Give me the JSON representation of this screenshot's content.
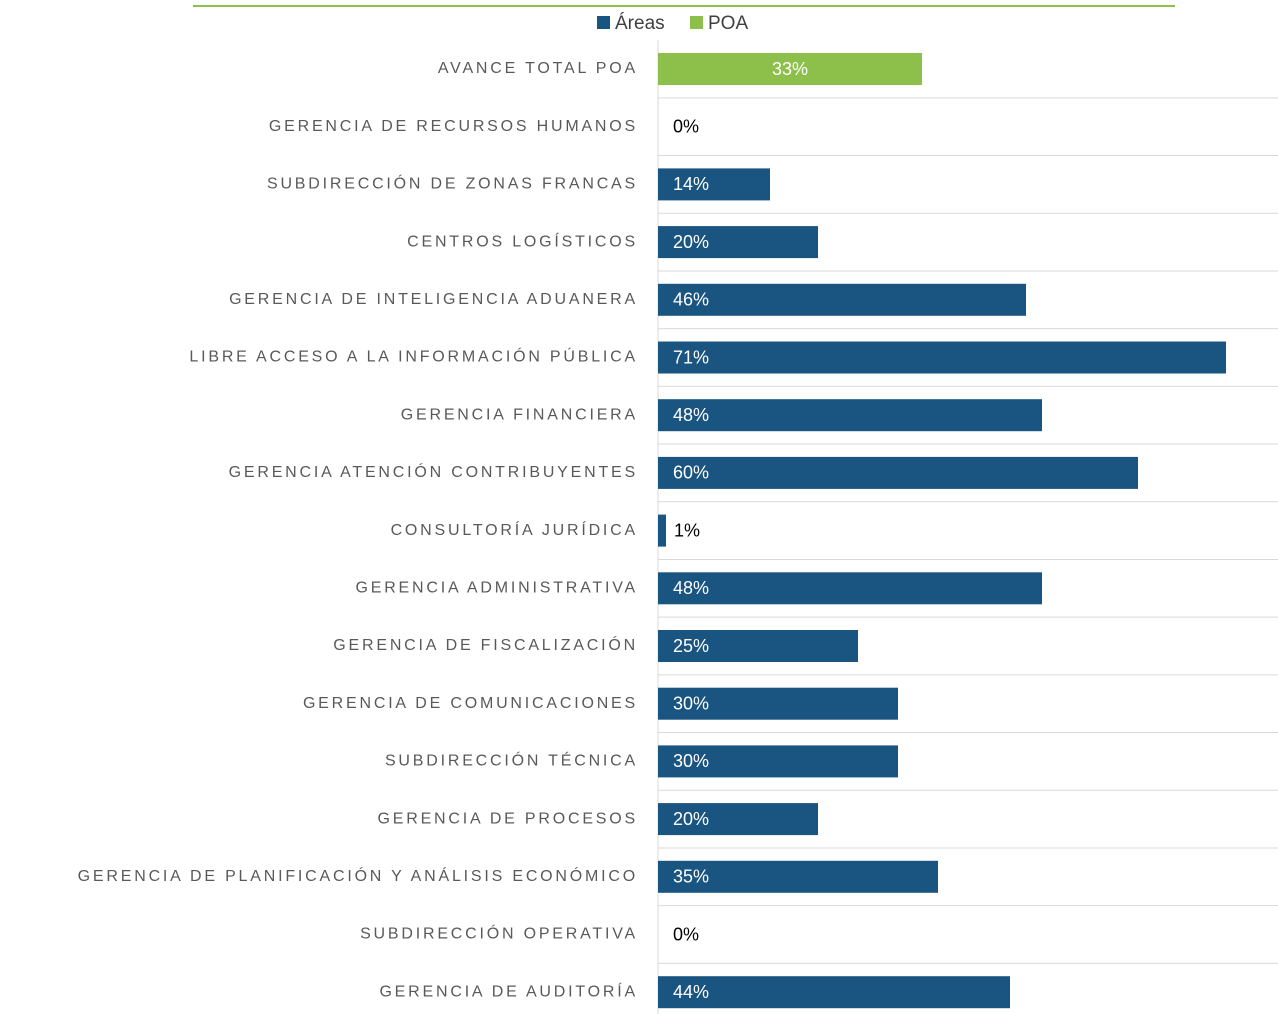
{
  "chart_data": {
    "type": "hbar",
    "categories": [
      "AVANCE TOTAL POA",
      "GERENCIA DE RECURSOS HUMANOS",
      "SUBDIRECCIÓN DE ZONAS FRANCAS",
      "CENTROS LOGÍSTICOS",
      "GERENCIA DE INTELIGENCIA ADUANERA",
      "LIBRE ACCESO A LA INFORMACIÓN PÚBLICA",
      "GERENCIA FINANCIERA",
      "GERENCIA ATENCIÓN CONTRIBUYENTES",
      "CONSULTORÍA JURÍDICA",
      "GERENCIA ADMINISTRATIVA",
      "GERENCIA DE FISCALIZACIÓN",
      "GERENCIA DE COMUNICACIONES",
      "SUBDIRECCIÓN TÉCNICA",
      "GERENCIA DE PROCESOS",
      "GERENCIA DE PLANIFICACIÓN Y ANÁLISIS ECONÓMICO",
      "SUBDIRECCIÓN OPERATIVA",
      "GERENCIA DE AUDITORÍA"
    ],
    "series": [
      {
        "name": "Áreas",
        "color": "#1a5480",
        "values": [
          null,
          0,
          14,
          20,
          46,
          71,
          48,
          60,
          1,
          48,
          25,
          30,
          30,
          20,
          35,
          0,
          44
        ],
        "value_labels": [
          null,
          "0%",
          "14%",
          "20%",
          "46%",
          "71%",
          "48%",
          "60%",
          "1%",
          "48%",
          "25%",
          "30%",
          "30%",
          "20%",
          "35%",
          "0%",
          "44%"
        ]
      },
      {
        "name": "POA",
        "color": "#8cc04a",
        "values": [
          33,
          null,
          null,
          null,
          null,
          null,
          null,
          null,
          null,
          null,
          null,
          null,
          null,
          null,
          null,
          null,
          null
        ],
        "value_labels": [
          "33%",
          null,
          null,
          null,
          null,
          null,
          null,
          null,
          null,
          null,
          null,
          null,
          null,
          null,
          null,
          null,
          null
        ]
      }
    ],
    "xlim": [
      0,
      77.5
    ]
  }
}
